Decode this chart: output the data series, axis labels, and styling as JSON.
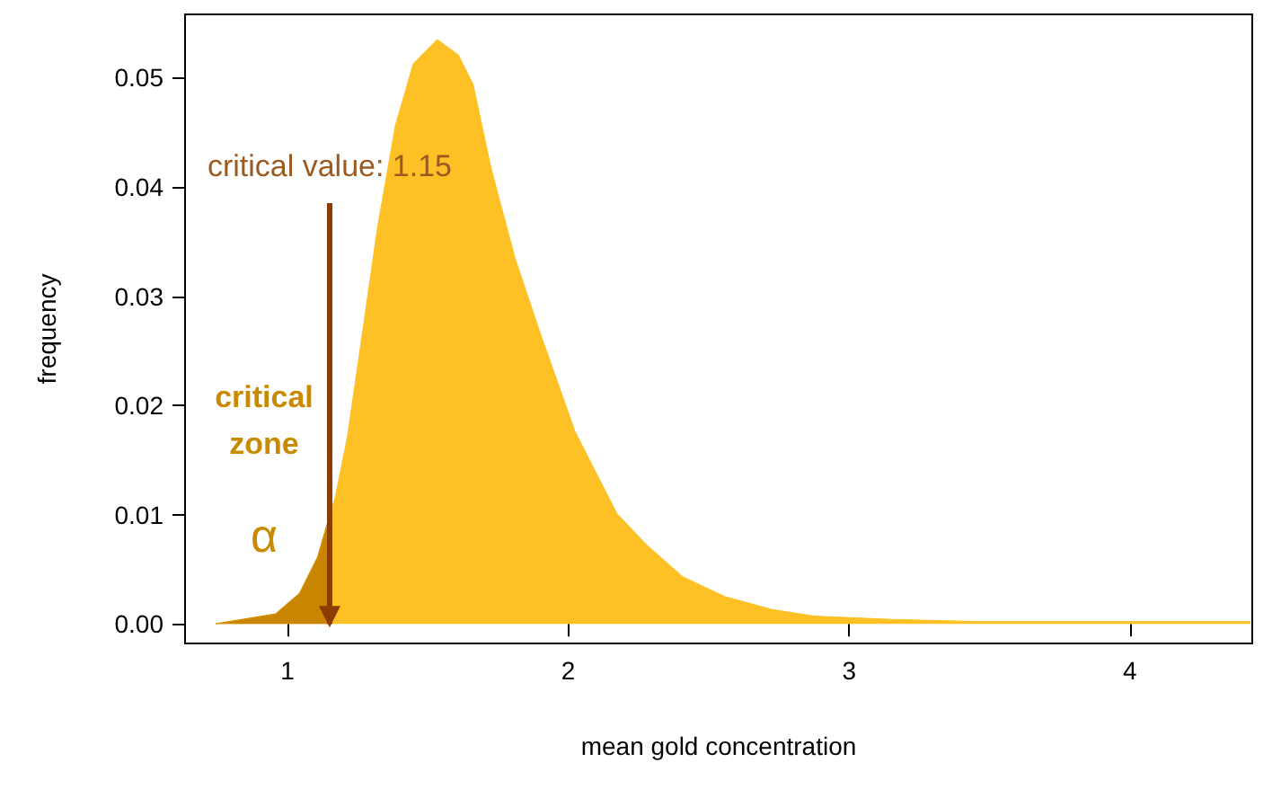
{
  "chart_data": {
    "type": "area",
    "xlabel": "mean gold concentration",
    "ylabel": "frequency",
    "xlim": [
      0.635,
      4.436
    ],
    "ylim": [
      -0.0018,
      0.0558
    ],
    "xticks": [
      1,
      2,
      3,
      4
    ],
    "yticks": [
      {
        "value": 0,
        "label": "0.00"
      },
      {
        "value": 0.01,
        "label": "0.01"
      },
      {
        "value": 0.02,
        "label": "0.02"
      },
      {
        "value": 0.03,
        "label": "0.03"
      },
      {
        "value": 0.04,
        "label": "0.04"
      },
      {
        "value": 0.05,
        "label": "0.05"
      }
    ],
    "grid": false,
    "marker": "none",
    "series": [
      {
        "color": "#fdc125",
        "x": [
          0.744,
          0.957,
          1.043,
          1.107,
          1.15,
          1.17,
          1.213,
          1.256,
          1.32,
          1.384,
          1.448,
          1.533,
          1.608,
          1.661,
          1.725,
          1.81,
          1.896,
          2.024,
          2.173,
          2.28,
          2.408,
          2.557,
          2.727,
          2.877,
          3.154,
          3.47,
          4.43
        ],
        "values": [
          0,
          0.0009,
          0.0028,
          0.0061,
          0.0099,
          0.0116,
          0.0171,
          0.0247,
          0.0362,
          0.0456,
          0.0513,
          0.0535,
          0.0521,
          0.0494,
          0.0417,
          0.0335,
          0.0269,
          0.0176,
          0.0101,
          0.0072,
          0.0043,
          0.0025,
          0.0013,
          0.0007,
          0.0004,
          0.0002,
          0.0002
        ]
      },
      {
        "color": "#c98500",
        "x": [
          0.744,
          0.957,
          1.043,
          1.107,
          1.15
        ],
        "values": [
          0,
          0.0009,
          0.0028,
          0.0061,
          0.0099
        ]
      }
    ],
    "ref_lines": [
      {
        "axis": "x",
        "value": 1.15,
        "label": "critical value: 1.15",
        "color": "#8c3c00"
      }
    ],
    "annotations": [
      "critical\nzone",
      "α"
    ]
  }
}
